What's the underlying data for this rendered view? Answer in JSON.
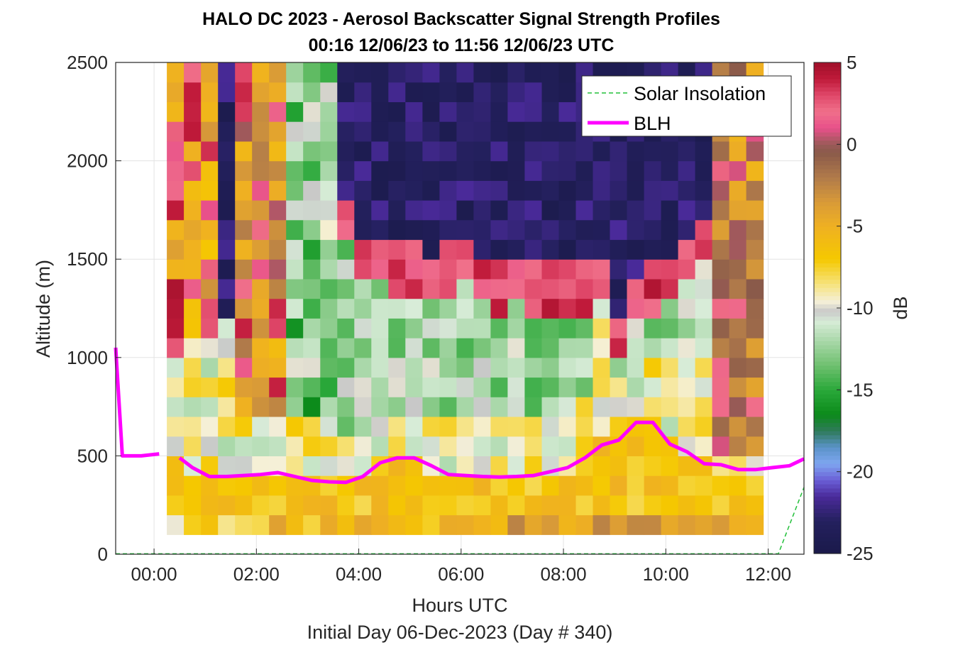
{
  "chart_data": {
    "type": "heatmap",
    "title": "HALO DC 2023 - Aerosol Backscatter Signal Strength Profiles",
    "subtitle": "00:16 12/06/23 to 11:56 12/06/23  UTC",
    "xlabel": "Hours UTC",
    "footer": "Initial Day 06-Dec-2023 (Day # 340)",
    "ylabel": "Altitude (m)",
    "xlim": [
      -0.75,
      12.7
    ],
    "ylim": [
      0,
      2500
    ],
    "x_ticks": [
      0,
      2,
      4,
      6,
      8,
      10,
      12
    ],
    "x_tick_labels": [
      "00:00",
      "02:00",
      "04:00",
      "06:00",
      "08:00",
      "10:00",
      "12:00"
    ],
    "y_ticks": [
      0,
      500,
      1000,
      1500,
      2000,
      2500
    ],
    "y_tick_labels": [
      "0",
      "500",
      "1000",
      "1500",
      "2000",
      "2500"
    ],
    "grid": true,
    "legend_position": "top-right",
    "legend": [
      {
        "label": "Solar Insolation",
        "color": "#22c03a",
        "style": "dashed"
      },
      {
        "label": "BLH",
        "color": "#ff00ff",
        "style": "solid"
      }
    ],
    "colorbar": {
      "label": "dB",
      "min": -25,
      "max": 5,
      "ticks": [
        5,
        0,
        -5,
        -10,
        -15,
        -20,
        -25
      ],
      "tick_labels": [
        "5",
        "0",
        "-5",
        "-10",
        "-15",
        "-20",
        "-25"
      ]
    },
    "heatmap": {
      "x_start": 0.25,
      "column_width_hours": 0.333,
      "altitude_base": 100,
      "row_height_m": 100,
      "column_tops_m": [
        2500,
        2500,
        2500,
        2500,
        2500,
        2500,
        2500,
        2500,
        2500,
        2500,
        2500,
        2500,
        2500,
        2500,
        2500,
        2500,
        2500,
        2500,
        2500,
        2500,
        2500,
        2500,
        2500,
        2500,
        2500,
        2500,
        2500,
        2500,
        2500,
        2500,
        2500,
        2500,
        2500,
        2500,
        2500
      ],
      "surface_db": [
        -10,
        -8,
        -7,
        -7,
        -7,
        -6,
        -6,
        -6,
        -6,
        -5,
        -6,
        -5,
        -5,
        -5,
        -6,
        -6,
        -6,
        -6,
        -5,
        -4,
        -4,
        -4,
        -5,
        -6,
        -3,
        -2,
        -2,
        -2,
        -3,
        -3,
        -3,
        -4,
        -5,
        -4,
        -5
      ],
      "columns": [
        {
          "x": 0.42,
          "blh": 470,
          "warm_top": 1050,
          "cloud_bottom": 1050
        },
        {
          "x": 0.75,
          "blh": 430,
          "warm_top": 1150,
          "cloud_bottom": 1100
        },
        {
          "x": 1.08,
          "blh": 390,
          "warm_top": 1200,
          "cloud_bottom": 950
        },
        {
          "x": 1.42,
          "blh": 390,
          "warm_top": 1200,
          "cloud_bottom": 900
        },
        {
          "x": 1.75,
          "blh": 395,
          "warm_top": 1200,
          "cloud_bottom": 950
        },
        {
          "x": 2.08,
          "blh": 400,
          "warm_top": 1100,
          "cloud_bottom": 700
        },
        {
          "x": 2.42,
          "blh": 410,
          "warm_top": 1050,
          "cloud_bottom": 650
        },
        {
          "x": 2.75,
          "blh": 395,
          "warm_top": 900,
          "cloud_bottom": 700
        },
        {
          "x": 3.08,
          "blh": 375,
          "warm_top": 700,
          "cloud_bottom": 1200
        },
        {
          "x": 3.42,
          "blh": 365,
          "warm_top": 650,
          "cloud_bottom": 1500
        },
        {
          "x": 3.75,
          "blh": 360,
          "warm_top": 600,
          "cloud_bottom": 1600
        },
        {
          "x": 4.08,
          "blh": 390,
          "warm_top": 600,
          "cloud_bottom": 1400
        },
        {
          "x": 4.42,
          "blh": 460,
          "warm_top": 650,
          "cloud_bottom": 1400
        },
        {
          "x": 4.75,
          "blh": 490,
          "warm_top": 700,
          "cloud_bottom": 1350
        },
        {
          "x": 5.08,
          "blh": 490,
          "warm_top": 700,
          "cloud_bottom": 1350
        },
        {
          "x": 5.42,
          "blh": 450,
          "warm_top": 700,
          "cloud_bottom": 1300
        },
        {
          "x": 5.75,
          "blh": 405,
          "warm_top": 700,
          "cloud_bottom": 1350
        },
        {
          "x": 6.08,
          "blh": 400,
          "warm_top": 700,
          "cloud_bottom": 1400
        },
        {
          "x": 6.42,
          "blh": 395,
          "warm_top": 700,
          "cloud_bottom": 1300
        },
        {
          "x": 6.75,
          "blh": 390,
          "warm_top": 700,
          "cloud_bottom": 1250
        },
        {
          "x": 7.08,
          "blh": 395,
          "warm_top": 700,
          "cloud_bottom": 1300
        },
        {
          "x": 7.42,
          "blh": 400,
          "warm_top": 700,
          "cloud_bottom": 1250
        },
        {
          "x": 7.75,
          "blh": 420,
          "warm_top": 700,
          "cloud_bottom": 1250
        },
        {
          "x": 8.08,
          "blh": 440,
          "warm_top": 750,
          "cloud_bottom": 1250
        },
        {
          "x": 8.42,
          "blh": 490,
          "warm_top": 800,
          "cloud_bottom": 1250
        },
        {
          "x": 8.75,
          "blh": 555,
          "warm_top": 1200,
          "cloud_bottom": 1300
        },
        {
          "x": 9.08,
          "blh": 580,
          "warm_top": 900,
          "cloud_bottom": 1000
        },
        {
          "x": 9.42,
          "blh": 660,
          "warm_top": 900,
          "cloud_bottom": 1200
        },
        {
          "x": 9.75,
          "blh": 670,
          "warm_top": 1000,
          "cloud_bottom": 1250
        },
        {
          "x": 10.08,
          "blh": 560,
          "warm_top": 1050,
          "cloud_bottom": 1300
        },
        {
          "x": 10.42,
          "blh": 520,
          "warm_top": 1150,
          "cloud_bottom": 1400
        },
        {
          "x": 10.75,
          "blh": 460,
          "warm_top": 1500,
          "cloud_bottom": 1500
        },
        {
          "x": 11.08,
          "blh": 450,
          "warm_top": 1550,
          "cloud_bottom": 1600
        },
        {
          "x": 11.42,
          "blh": 430,
          "warm_top": 1900,
          "cloud_bottom": 2000
        },
        {
          "x": 11.75,
          "blh": 430,
          "warm_top": 2400,
          "cloud_bottom": 2500
        }
      ]
    },
    "series": [
      {
        "name": "BLH",
        "color": "#ff00ff",
        "x": [
          -0.75,
          -0.62,
          -0.25,
          0.1
        ],
        "y": [
          1050,
          500,
          500,
          510
        ]
      },
      {
        "name": "BLH",
        "color": "#ff00ff",
        "x": [
          0.5,
          0.75,
          1.08,
          1.42,
          1.75,
          2.08,
          2.42,
          2.75,
          3.08,
          3.42,
          3.75,
          4.08,
          4.42,
          4.75,
          5.08,
          5.42,
          5.75,
          6.08,
          6.42,
          6.75,
          7.08,
          7.42,
          7.75,
          8.08,
          8.42,
          8.75,
          9.08,
          9.42,
          9.75,
          10.08,
          10.42,
          10.75,
          11.08,
          11.42,
          11.75,
          12.08,
          12.42,
          12.7
        ],
        "y": [
          490,
          440,
          395,
          395,
          400,
          405,
          415,
          395,
          375,
          368,
          365,
          395,
          465,
          490,
          490,
          450,
          405,
          400,
          395,
          392,
          395,
          400,
          420,
          440,
          490,
          555,
          580,
          670,
          670,
          560,
          520,
          460,
          455,
          430,
          430,
          440,
          450,
          485
        ]
      },
      {
        "name": "Solar Insolation",
        "color": "#22c03a",
        "x": [
          -0.75,
          12.2,
          12.7
        ],
        "y": [
          2,
          2,
          340
        ]
      }
    ]
  }
}
